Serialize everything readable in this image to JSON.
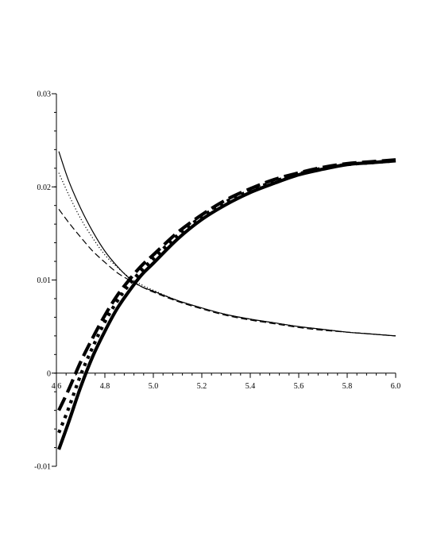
{
  "chart_data": {
    "type": "line",
    "title": "",
    "xlabel": "",
    "ylabel": "",
    "xlim": [
      4.6,
      6.0
    ],
    "ylim": [
      -0.01,
      0.03
    ],
    "grid": false,
    "legend": "none",
    "x_ticks": [
      4.6,
      4.8,
      5.0,
      5.2,
      5.4,
      5.6,
      5.8,
      6.0
    ],
    "x_tick_labels": [
      "4.6",
      "4.8",
      "5.0",
      "5.2",
      "5.4",
      "5.6",
      "5.8",
      "6.0"
    ],
    "y_ticks": [
      -0.01,
      0,
      0.01,
      0.02,
      0.03
    ],
    "y_tick_labels": [
      "-0.01",
      "0",
      "0.01",
      "0.02",
      "0.03"
    ],
    "x": [
      4.61,
      4.65,
      4.7,
      4.75,
      4.8,
      4.85,
      4.9,
      4.95,
      5.0,
      5.1,
      5.2,
      5.3,
      5.4,
      5.5,
      5.6,
      5.7,
      5.8,
      5.9,
      6.0
    ],
    "series": [
      {
        "style": "thin-solid",
        "color": "#000000",
        "values": [
          0.0238,
          0.0207,
          0.0177,
          0.0152,
          0.0131,
          0.0115,
          0.0102,
          0.0093,
          0.0088,
          0.0078,
          0.007,
          0.0063,
          0.0058,
          0.0054,
          0.005,
          0.0047,
          0.0044,
          0.0042,
          0.004
        ]
      },
      {
        "style": "thin-dotted",
        "color": "#000000",
        "values": [
          0.0215,
          0.0192,
          0.0166,
          0.0145,
          0.0127,
          0.0114,
          0.0103,
          0.0095,
          0.0089,
          0.0078,
          0.007,
          0.0063,
          0.0058,
          0.0054,
          0.005,
          0.0047,
          0.0044,
          0.0042,
          0.004
        ]
      },
      {
        "style": "thin-dashed",
        "color": "#000000",
        "values": [
          0.0176,
          0.0162,
          0.0146,
          0.0131,
          0.0119,
          0.0108,
          0.01,
          0.0093,
          0.0087,
          0.0077,
          0.0069,
          0.0062,
          0.0057,
          0.0053,
          0.0049,
          0.0046,
          0.0044,
          0.0042,
          0.004
        ]
      },
      {
        "style": "thick-solid",
        "color": "#000000",
        "values": [
          -0.0082,
          -0.0053,
          -0.0015,
          0.0018,
          0.0045,
          0.0069,
          0.0088,
          0.0105,
          0.0118,
          0.0144,
          0.0165,
          0.0181,
          0.0194,
          0.0204,
          0.0213,
          0.0219,
          0.0224,
          0.0226,
          0.0228
        ]
      },
      {
        "style": "thick-dotted",
        "color": "#000000",
        "values": [
          -0.0064,
          -0.0038,
          -0.0002,
          0.0028,
          0.0055,
          0.0077,
          0.0095,
          0.011,
          0.0123,
          0.0148,
          0.0168,
          0.0184,
          0.0196,
          0.0206,
          0.0214,
          0.022,
          0.0224,
          0.0226,
          0.0228
        ]
      },
      {
        "style": "thick-dashed",
        "color": "#000000",
        "values": [
          -0.004,
          -0.0018,
          0.0012,
          0.0038,
          0.0062,
          0.0083,
          0.01,
          0.0115,
          0.0127,
          0.0151,
          0.017,
          0.0186,
          0.0198,
          0.0208,
          0.0215,
          0.0221,
          0.0225,
          0.0227,
          0.0229
        ]
      }
    ]
  }
}
